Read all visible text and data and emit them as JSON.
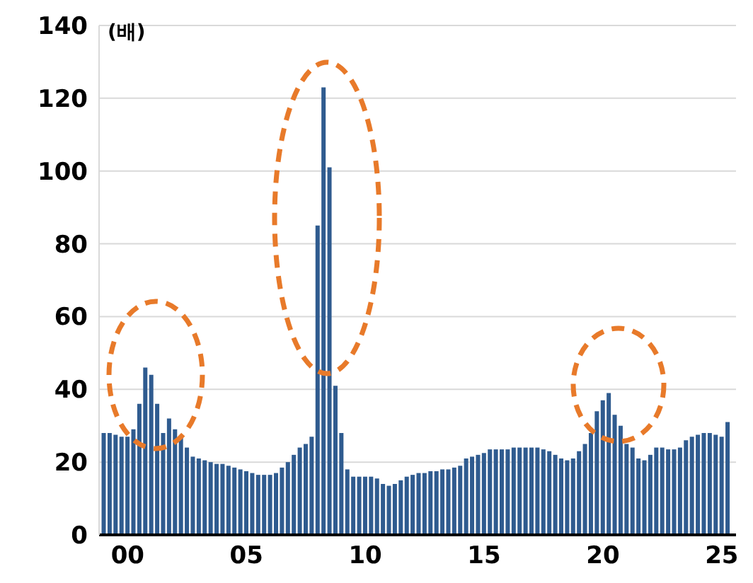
{
  "chart_data": {
    "type": "bar",
    "ylabel": "(배)",
    "x": [
      1999,
      1999.25,
      1999.5,
      1999.75,
      2000,
      2000.25,
      2000.5,
      2000.75,
      2001,
      2001.25,
      2001.5,
      2001.75,
      2002,
      2002.25,
      2002.5,
      2002.75,
      2003,
      2003.25,
      2003.5,
      2003.75,
      2004,
      2004.25,
      2004.5,
      2004.75,
      2005,
      2005.25,
      2005.5,
      2005.75,
      2006,
      2006.25,
      2006.5,
      2006.75,
      2007,
      2007.25,
      2007.5,
      2007.75,
      2008,
      2008.25,
      2008.5,
      2008.75,
      2009,
      2009.25,
      2009.5,
      2009.75,
      2010,
      2010.25,
      2010.5,
      2010.75,
      2011,
      2011.25,
      2011.5,
      2011.75,
      2012,
      2012.25,
      2012.5,
      2012.75,
      2013,
      2013.25,
      2013.5,
      2013.75,
      2014,
      2014.25,
      2014.5,
      2014.75,
      2015,
      2015.25,
      2015.5,
      2015.75,
      2016,
      2016.25,
      2016.5,
      2016.75,
      2017,
      2017.25,
      2017.5,
      2017.75,
      2018,
      2018.25,
      2018.5,
      2018.75,
      2019,
      2019.25,
      2019.5,
      2019.75,
      2020,
      2020.25,
      2020.5,
      2020.75,
      2021,
      2021.25,
      2021.5,
      2021.75,
      2022,
      2022.25,
      2022.5,
      2022.75,
      2023,
      2023.25,
      2023.5,
      2023.75,
      2024,
      2024.25,
      2024.5,
      2024.75,
      2025,
      2025.25
    ],
    "values": [
      28,
      28,
      27.5,
      27,
      27,
      29,
      36,
      46,
      44,
      36,
      28,
      32,
      29,
      27,
      24,
      21.5,
      21,
      20.5,
      20,
      19.5,
      19.5,
      19,
      18.5,
      18,
      17.5,
      17,
      16.5,
      16.5,
      16.5,
      17,
      18.5,
      20,
      22,
      24,
      25,
      27,
      85,
      123,
      101,
      41,
      28,
      18,
      16,
      16,
      16,
      16,
      15.5,
      14,
      13.5,
      14,
      15,
      16,
      16.5,
      17,
      17,
      17.5,
      17.5,
      18,
      18,
      18.5,
      19,
      21,
      21.5,
      22,
      22.5,
      23.5,
      23.5,
      23.5,
      23.5,
      24,
      24,
      24,
      24,
      24,
      23.5,
      23,
      22,
      21,
      20.5,
      21,
      23,
      25,
      28,
      34,
      37,
      39,
      33,
      30,
      25,
      24,
      21,
      20.5,
      22,
      24,
      24,
      23.5,
      23.5,
      24,
      26,
      27,
      27.5,
      28,
      28,
      27.5,
      27,
      31
    ],
    "color": "#2f5b8f",
    "xlim": [
      1998.8,
      2025.6
    ],
    "xticks": [
      {
        "value": 2000,
        "label": "00"
      },
      {
        "value": 2005,
        "label": "05"
      },
      {
        "value": 2010,
        "label": "10"
      },
      {
        "value": 2015,
        "label": "15"
      },
      {
        "value": 2020,
        "label": "20"
      },
      {
        "value": 2025,
        "label": "25"
      }
    ],
    "ylim": [
      0,
      140
    ],
    "yticks": [
      0,
      20,
      40,
      60,
      80,
      100,
      120,
      140
    ],
    "grid": "y"
  }
}
